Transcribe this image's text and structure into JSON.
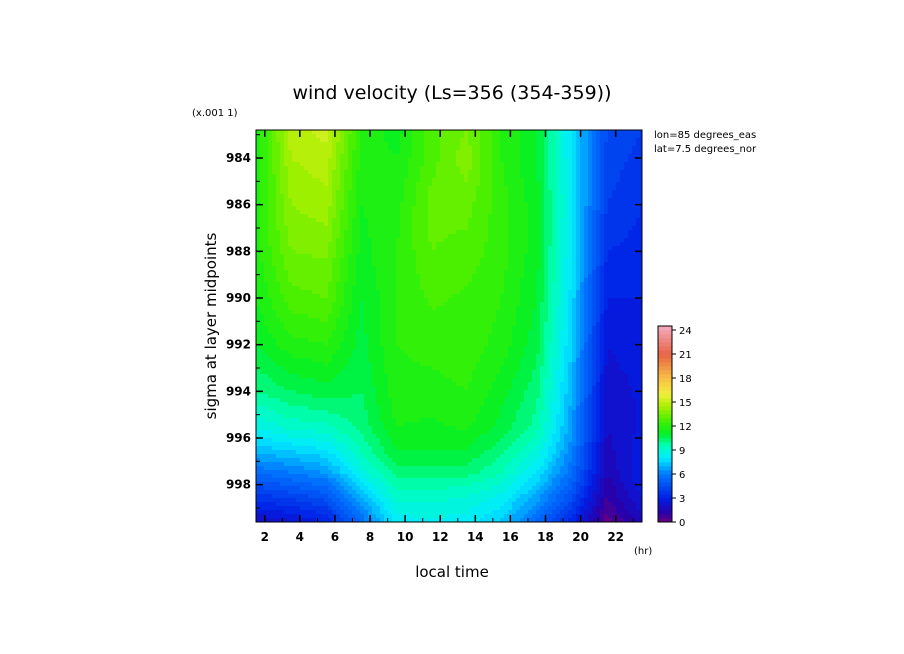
{
  "chart_data": {
    "type": "heatmap",
    "title": "wind velocity (Ls=356 (354-359))",
    "xlabel": "local time",
    "xunit": "(hr)",
    "ylabel": "sigma at layer midpoints",
    "yscale_note": "(x.001 1)",
    "annotations": [
      "lon=85 degrees_eas",
      "lat=7.5 degrees_nor"
    ],
    "x_ticks": [
      2,
      4,
      6,
      8,
      10,
      12,
      14,
      16,
      18,
      20,
      22
    ],
    "y_ticks": [
      984,
      986,
      988,
      990,
      992,
      994,
      996,
      998
    ],
    "xlim": [
      1.5,
      23.5
    ],
    "ylim": [
      982.8,
      999.6
    ],
    "y_inverted": true,
    "colorbar": {
      "ticks": [
        0,
        3,
        6,
        9,
        12,
        15,
        18,
        21,
        24
      ],
      "range": [
        0,
        24.5
      ]
    },
    "grid": false,
    "x": [
      1.5,
      3.5,
      5.5,
      7.5,
      9.5,
      11.5,
      13.5,
      15.5,
      17.5,
      19.5,
      21.5,
      23.5
    ],
    "y": [
      982.8,
      984,
      986,
      988,
      990,
      992,
      994,
      995.5,
      996.5,
      997.5,
      998.5,
      999.6
    ],
    "values": [
      [
        11.5,
        14.8,
        15.2,
        12.0,
        11.2,
        12.8,
        13.5,
        12.0,
        11.0,
        8.0,
        4.5,
        4.0
      ],
      [
        11.5,
        14.5,
        14.8,
        11.8,
        11.5,
        12.8,
        13.8,
        12.0,
        11.0,
        8.0,
        4.3,
        3.8
      ],
      [
        11.8,
        14.0,
        14.3,
        11.5,
        11.8,
        13.2,
        13.2,
        12.2,
        11.2,
        8.2,
        4.0,
        3.5
      ],
      [
        11.8,
        13.5,
        13.6,
        11.3,
        12.0,
        13.0,
        12.8,
        12.2,
        11.2,
        8.0,
        3.5,
        3.3
      ],
      [
        11.5,
        12.8,
        13.0,
        11.0,
        12.0,
        12.6,
        12.4,
        12.0,
        11.0,
        7.8,
        3.0,
        3.0
      ],
      [
        11.0,
        11.8,
        12.0,
        10.8,
        12.0,
        12.2,
        12.3,
        11.8,
        10.7,
        7.5,
        2.5,
        2.8
      ],
      [
        10.0,
        10.5,
        10.8,
        10.5,
        11.8,
        11.8,
        12.0,
        11.2,
        10.2,
        7.0,
        2.2,
        2.6
      ],
      [
        8.6,
        9.2,
        9.4,
        10.2,
        11.5,
        11.4,
        11.6,
        10.8,
        9.8,
        6.6,
        2.0,
        2.6
      ],
      [
        7.2,
        7.6,
        8.0,
        9.6,
        11.0,
        11.0,
        11.0,
        10.2,
        9.0,
        6.2,
        1.8,
        2.8
      ],
      [
        5.5,
        6.0,
        6.5,
        8.6,
        10.2,
        10.2,
        10.2,
        9.5,
        8.0,
        5.6,
        1.5,
        3.0
      ],
      [
        3.8,
        4.2,
        4.8,
        7.0,
        9.2,
        9.2,
        9.0,
        8.4,
        6.8,
        4.6,
        1.0,
        2.6
      ],
      [
        2.0,
        2.4,
        3.0,
        5.6,
        8.2,
        8.4,
        8.2,
        7.4,
        5.4,
        3.2,
        0.2,
        1.8
      ]
    ]
  }
}
